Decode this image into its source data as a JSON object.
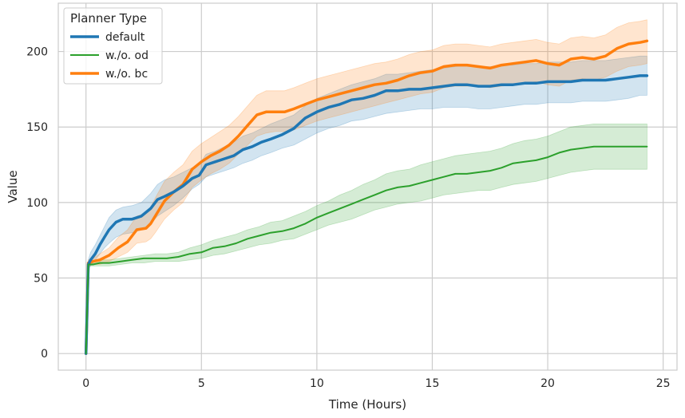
{
  "chart_data": {
    "type": "line",
    "title": "",
    "xlabel": "Time (Hours)",
    "ylabel": "Value",
    "xlim": [
      -1.2,
      25.6
    ],
    "ylim": [
      -11,
      232
    ],
    "xticks": [
      0,
      5,
      10,
      15,
      20,
      25
    ],
    "yticks": [
      0,
      50,
      100,
      150,
      200
    ],
    "grid": true,
    "legend": {
      "title": "Planner Type",
      "position": "top-left"
    },
    "series": [
      {
        "name": "default",
        "color": "#1f77b4",
        "linewidth": 3.5,
        "x": [
          0,
          0.1,
          0.2,
          0.4,
          0.6,
          0.8,
          1,
          1.3,
          1.6,
          2,
          2.4,
          2.8,
          3.1,
          3.4,
          3.8,
          4.2,
          4.6,
          4.9,
          5.2,
          5.6,
          6,
          6.4,
          6.8,
          7.2,
          7.6,
          8,
          8.5,
          9,
          9.5,
          10,
          10.5,
          11,
          11.5,
          12,
          12.5,
          13,
          13.5,
          14,
          14.5,
          15,
          15.5,
          16,
          16.5,
          17,
          17.5,
          18,
          18.5,
          19,
          19.5,
          20,
          20.5,
          21,
          21.5,
          22,
          22.5,
          23,
          23.5,
          24,
          24.3
        ],
        "y": [
          0,
          59,
          62,
          66,
          72,
          77,
          82,
          87,
          89,
          89,
          91,
          96,
          102,
          104,
          107,
          111,
          116,
          118,
          125,
          127,
          129,
          131,
          135,
          137,
          140,
          142,
          145,
          149,
          156,
          160,
          163,
          165,
          168,
          169,
          171,
          174,
          174,
          175,
          175,
          176,
          177,
          178,
          178,
          177,
          177,
          178,
          178,
          179,
          179,
          180,
          180,
          180,
          181,
          181,
          181,
          182,
          183,
          184,
          184
        ],
        "lower": [
          0,
          56,
          58,
          62,
          66,
          70,
          73,
          77,
          79,
          80,
          82,
          86,
          91,
          94,
          98,
          103,
          109,
          112,
          117,
          119,
          121,
          123,
          126,
          128,
          131,
          133,
          136,
          138,
          142,
          146,
          149,
          151,
          154,
          155,
          157,
          159,
          160,
          161,
          162,
          162,
          163,
          163,
          163,
          162,
          162,
          163,
          164,
          165,
          165,
          166,
          166,
          166,
          167,
          167,
          167,
          168,
          169,
          171,
          171
        ],
        "upper": [
          0,
          62,
          67,
          72,
          78,
          84,
          90,
          95,
          97,
          98,
          100,
          106,
          112,
          115,
          117,
          120,
          123,
          125,
          132,
          134,
          137,
          140,
          144,
          146,
          149,
          152,
          155,
          158,
          164,
          169,
          172,
          175,
          178,
          180,
          182,
          185,
          185,
          186,
          187,
          188,
          189,
          190,
          191,
          190,
          190,
          191,
          191,
          192,
          192,
          193,
          193,
          193,
          194,
          194,
          194,
          195,
          196,
          197,
          197
        ]
      },
      {
        "name": "w./o. od",
        "color": "#2ca02c",
        "linewidth": 2,
        "x": [
          0,
          0.1,
          0.3,
          0.6,
          1,
          1.5,
          2,
          2.5,
          3,
          3.5,
          4,
          4.5,
          5,
          5.5,
          6,
          6.5,
          7,
          7.5,
          8,
          8.5,
          9,
          9.5,
          10,
          10.5,
          11,
          11.5,
          12,
          12.5,
          13,
          13.5,
          14,
          14.5,
          15,
          15.5,
          16,
          16.5,
          17,
          17.5,
          18,
          18.5,
          19,
          19.5,
          20,
          20.5,
          21,
          21.5,
          22,
          22.5,
          23,
          23.5,
          24,
          24.3
        ],
        "y": [
          0,
          59,
          59,
          60,
          60,
          61,
          62,
          63,
          63,
          63,
          64,
          66,
          67,
          70,
          71,
          73,
          76,
          78,
          80,
          81,
          83,
          86,
          90,
          93,
          96,
          99,
          102,
          105,
          108,
          110,
          111,
          113,
          115,
          117,
          119,
          119,
          120,
          121,
          123,
          126,
          127,
          128,
          130,
          133,
          135,
          136,
          137,
          137,
          137,
          137,
          137,
          137
        ],
        "lower": [
          0,
          58,
          58,
          58,
          58,
          59,
          60,
          60,
          61,
          61,
          61,
          62,
          63,
          65,
          66,
          68,
          70,
          72,
          73,
          75,
          76,
          79,
          82,
          85,
          87,
          89,
          92,
          95,
          97,
          99,
          100,
          101,
          103,
          105,
          106,
          107,
          108,
          108,
          110,
          112,
          113,
          114,
          116,
          118,
          120,
          121,
          122,
          122,
          122,
          122,
          122,
          122
        ],
        "upper": [
          0,
          60,
          61,
          62,
          62,
          63,
          64,
          65,
          66,
          66,
          67,
          70,
          72,
          75,
          77,
          79,
          82,
          84,
          87,
          88,
          91,
          94,
          98,
          101,
          105,
          108,
          112,
          115,
          119,
          121,
          122,
          125,
          127,
          129,
          131,
          132,
          133,
          134,
          136,
          139,
          141,
          142,
          144,
          147,
          150,
          151,
          152,
          152,
          152,
          152,
          152,
          152
        ]
      },
      {
        "name": "w./o. bc",
        "color": "#ff7f0e",
        "linewidth": 3.5,
        "x": [
          0,
          0.1,
          0.3,
          0.6,
          1,
          1.4,
          1.8,
          2.2,
          2.6,
          2.8,
          3,
          3.4,
          3.8,
          4.2,
          4.6,
          5,
          5.4,
          5.8,
          6.2,
          6.6,
          7,
          7.4,
          7.8,
          8.2,
          8.6,
          9,
          9.5,
          10,
          10.5,
          11,
          11.5,
          12,
          12.5,
          13,
          13.5,
          14,
          14.5,
          15,
          15.5,
          16,
          16.5,
          17,
          17.5,
          18,
          18.5,
          19,
          19.5,
          20,
          20.5,
          21,
          21.5,
          22,
          22.5,
          23,
          23.5,
          24,
          24.3
        ],
        "y": [
          0,
          60,
          61,
          62,
          65,
          70,
          74,
          82,
          83,
          86,
          91,
          101,
          107,
          112,
          122,
          127,
          131,
          134,
          138,
          144,
          151,
          158,
          160,
          160,
          160,
          162,
          165,
          168,
          170,
          172,
          174,
          176,
          178,
          179,
          181,
          184,
          186,
          187,
          190,
          191,
          191,
          190,
          189,
          191,
          192,
          193,
          194,
          192,
          191,
          195,
          196,
          195,
          197,
          202,
          205,
          206,
          207
        ],
        "lower": [
          0,
          58,
          59,
          59,
          61,
          64,
          67,
          73,
          74,
          76,
          80,
          89,
          95,
          100,
          110,
          115,
          119,
          122,
          126,
          132,
          138,
          144,
          146,
          147,
          147,
          148,
          151,
          154,
          156,
          158,
          160,
          162,
          164,
          166,
          168,
          170,
          172,
          173,
          176,
          177,
          177,
          177,
          176,
          177,
          178,
          179,
          180,
          178,
          177,
          181,
          182,
          181,
          183,
          187,
          190,
          191,
          192
        ],
        "upper": [
          0,
          62,
          63,
          66,
          70,
          77,
          82,
          91,
          93,
          97,
          103,
          114,
          120,
          125,
          134,
          139,
          143,
          147,
          151,
          157,
          164,
          171,
          174,
          174,
          174,
          176,
          179,
          182,
          184,
          186,
          188,
          190,
          192,
          193,
          195,
          198,
          200,
          201,
          204,
          205,
          205,
          204,
          203,
          205,
          206,
          207,
          208,
          206,
          205,
          209,
          210,
          209,
          211,
          216,
          219,
          220,
          221
        ]
      }
    ]
  }
}
